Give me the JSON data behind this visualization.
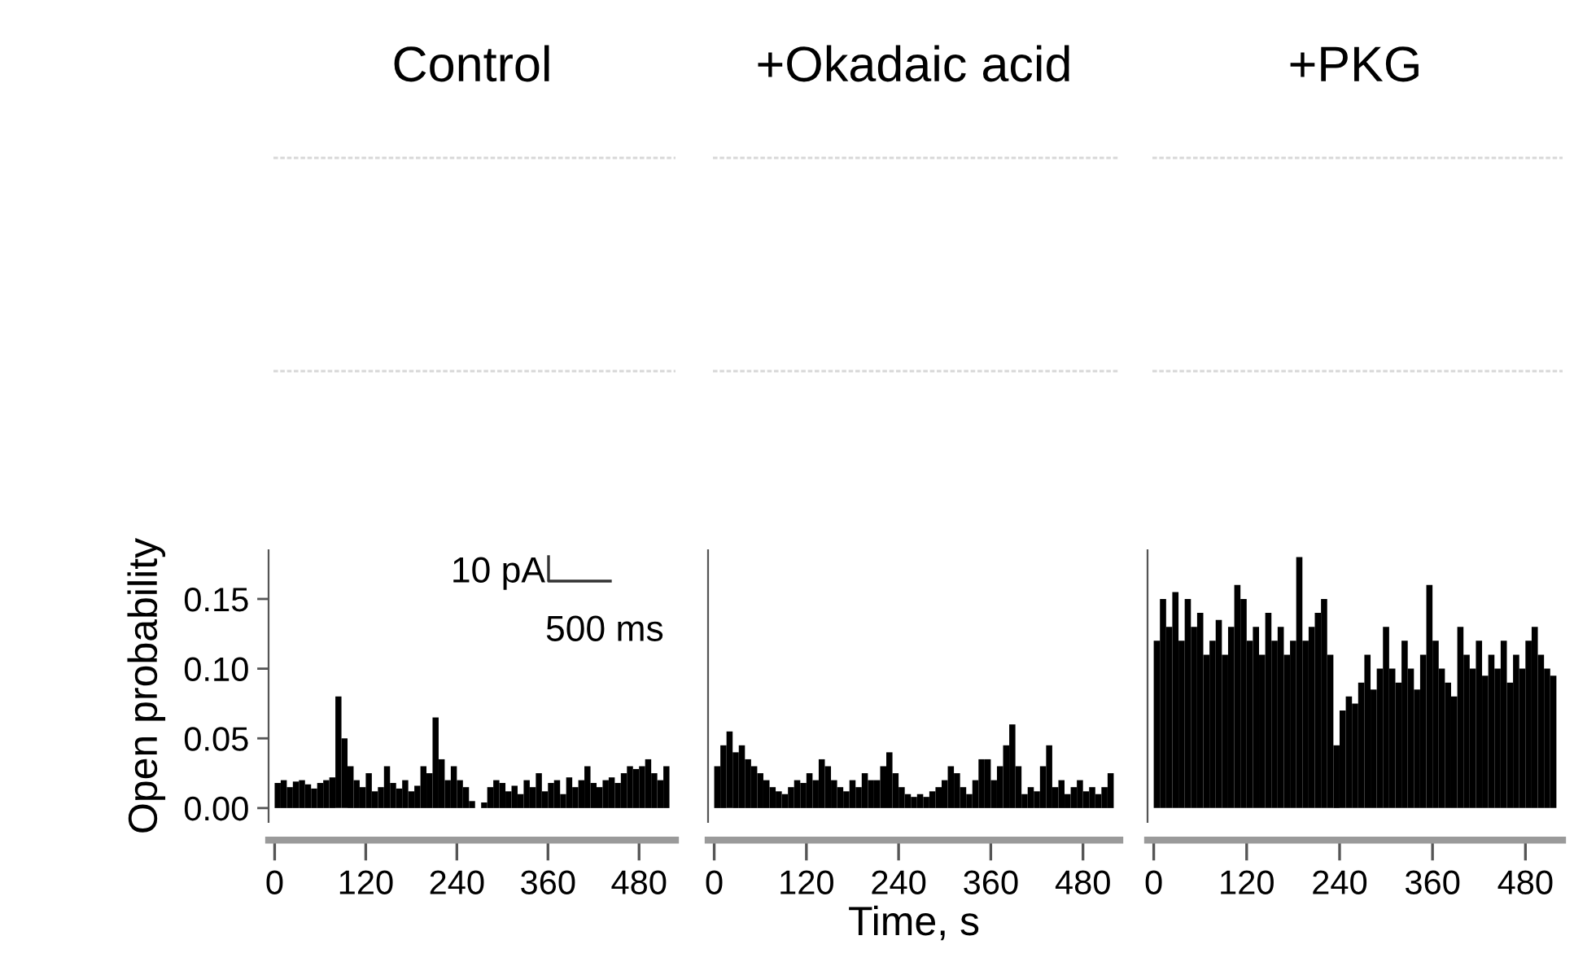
{
  "chart_data": [
    {
      "type": "histogram",
      "title": "Control",
      "ylabel": "Open probability",
      "color": "#000000",
      "annotations": [
        "10 pA",
        "500 ms"
      ],
      "xlim": [
        -8,
        528
      ],
      "xticks": [
        0,
        120,
        240,
        360,
        480
      ],
      "ylim": [
        -0.01,
        0.185
      ],
      "yticks": [
        {
          "value": 0.0,
          "label": "0.00"
        },
        0.05,
        {
          "value": 0.1,
          "label": "0.10"
        },
        0.15
      ],
      "bins": [
        0,
        8,
        16,
        24,
        32,
        40,
        48,
        56,
        64,
        72,
        80,
        88,
        96,
        104,
        112,
        120,
        128,
        136,
        144,
        152,
        160,
        168,
        176,
        184,
        192,
        200,
        208,
        216,
        224,
        232,
        240,
        248,
        256,
        264,
        272,
        280,
        288,
        296,
        304,
        312,
        320,
        328,
        336,
        344,
        352,
        360,
        368,
        376,
        384,
        392,
        400,
        408,
        416,
        424,
        432,
        440,
        448,
        456,
        464,
        472,
        480,
        488,
        496,
        504,
        512,
        520
      ],
      "values": [
        0.018,
        0.02,
        0.015,
        0.019,
        0.02,
        0.017,
        0.014,
        0.018,
        0.02,
        0.022,
        0.08,
        0.05,
        0.03,
        0.02,
        0.015,
        0.025,
        0.012,
        0.015,
        0.03,
        0.018,
        0.014,
        0.02,
        0.012,
        0.016,
        0.03,
        0.025,
        0.065,
        0.035,
        0.02,
        0.03,
        0.02,
        0.015,
        0.005,
        0.0,
        0.004,
        0.015,
        0.02,
        0.018,
        0.012,
        0.016,
        0.01,
        0.02,
        0.015,
        0.025,
        0.012,
        0.018,
        0.02,
        0.01,
        0.022,
        0.015,
        0.02,
        0.03,
        0.018,
        0.015,
        0.02,
        0.022,
        0.018,
        0.025,
        0.03,
        0.028,
        0.03,
        0.035,
        0.025,
        0.02,
        0.03
      ]
    },
    {
      "type": "histogram",
      "title": "+Okadaic acid",
      "xlabel": "Time, s",
      "color": "#000000",
      "tick_labels": "x",
      "xlim": [
        -8,
        528
      ],
      "xticks": [
        0,
        120,
        240,
        360,
        480
      ],
      "ylim": [
        -0.01,
        0.185
      ],
      "bins": [
        0,
        8,
        16,
        24,
        32,
        40,
        48,
        56,
        64,
        72,
        80,
        88,
        96,
        104,
        112,
        120,
        128,
        136,
        144,
        152,
        160,
        168,
        176,
        184,
        192,
        200,
        208,
        216,
        224,
        232,
        240,
        248,
        256,
        264,
        272,
        280,
        288,
        296,
        304,
        312,
        320,
        328,
        336,
        344,
        352,
        360,
        368,
        376,
        384,
        392,
        400,
        408,
        416,
        424,
        432,
        440,
        448,
        456,
        464,
        472,
        480,
        488,
        496,
        504,
        512,
        520
      ],
      "values": [
        0.03,
        0.045,
        0.055,
        0.04,
        0.045,
        0.035,
        0.03,
        0.025,
        0.02,
        0.015,
        0.012,
        0.01,
        0.015,
        0.02,
        0.018,
        0.025,
        0.02,
        0.035,
        0.03,
        0.02,
        0.015,
        0.012,
        0.02,
        0.015,
        0.025,
        0.02,
        0.02,
        0.03,
        0.04,
        0.025,
        0.015,
        0.01,
        0.008,
        0.01,
        0.008,
        0.012,
        0.015,
        0.02,
        0.03,
        0.025,
        0.015,
        0.01,
        0.02,
        0.035,
        0.035,
        0.02,
        0.03,
        0.045,
        0.06,
        0.03,
        0.01,
        0.015,
        0.012,
        0.03,
        0.045,
        0.015,
        0.02,
        0.01,
        0.015,
        0.02,
        0.012,
        0.015,
        0.01,
        0.015,
        0.025
      ]
    },
    {
      "type": "histogram",
      "title": "+PKG",
      "color": "#000000",
      "tick_labels": "x",
      "xlim": [
        -8,
        528
      ],
      "xticks": [
        0,
        120,
        240,
        360,
        480
      ],
      "ylim": [
        -0.01,
        0.185
      ],
      "bins": [
        0,
        8,
        16,
        24,
        32,
        40,
        48,
        56,
        64,
        72,
        80,
        88,
        96,
        104,
        112,
        120,
        128,
        136,
        144,
        152,
        160,
        168,
        176,
        184,
        192,
        200,
        208,
        216,
        224,
        232,
        240,
        248,
        256,
        264,
        272,
        280,
        288,
        296,
        304,
        312,
        320,
        328,
        336,
        344,
        352,
        360,
        368,
        376,
        384,
        392,
        400,
        408,
        416,
        424,
        432,
        440,
        448,
        456,
        464,
        472,
        480,
        488,
        496,
        504,
        512,
        520
      ],
      "values": [
        0.12,
        0.15,
        0.13,
        0.155,
        0.12,
        0.15,
        0.13,
        0.14,
        0.11,
        0.12,
        0.135,
        0.11,
        0.13,
        0.16,
        0.15,
        0.12,
        0.13,
        0.11,
        0.14,
        0.12,
        0.13,
        0.11,
        0.12,
        0.18,
        0.12,
        0.13,
        0.14,
        0.15,
        0.11,
        0.045,
        0.07,
        0.08,
        0.075,
        0.09,
        0.11,
        0.085,
        0.1,
        0.13,
        0.1,
        0.09,
        0.12,
        0.1,
        0.085,
        0.11,
        0.16,
        0.12,
        0.1,
        0.09,
        0.08,
        0.13,
        0.11,
        0.1,
        0.12,
        0.095,
        0.11,
        0.1,
        0.12,
        0.09,
        0.11,
        0.1,
        0.12,
        0.13,
        0.11,
        0.1,
        0.095
      ]
    }
  ]
}
